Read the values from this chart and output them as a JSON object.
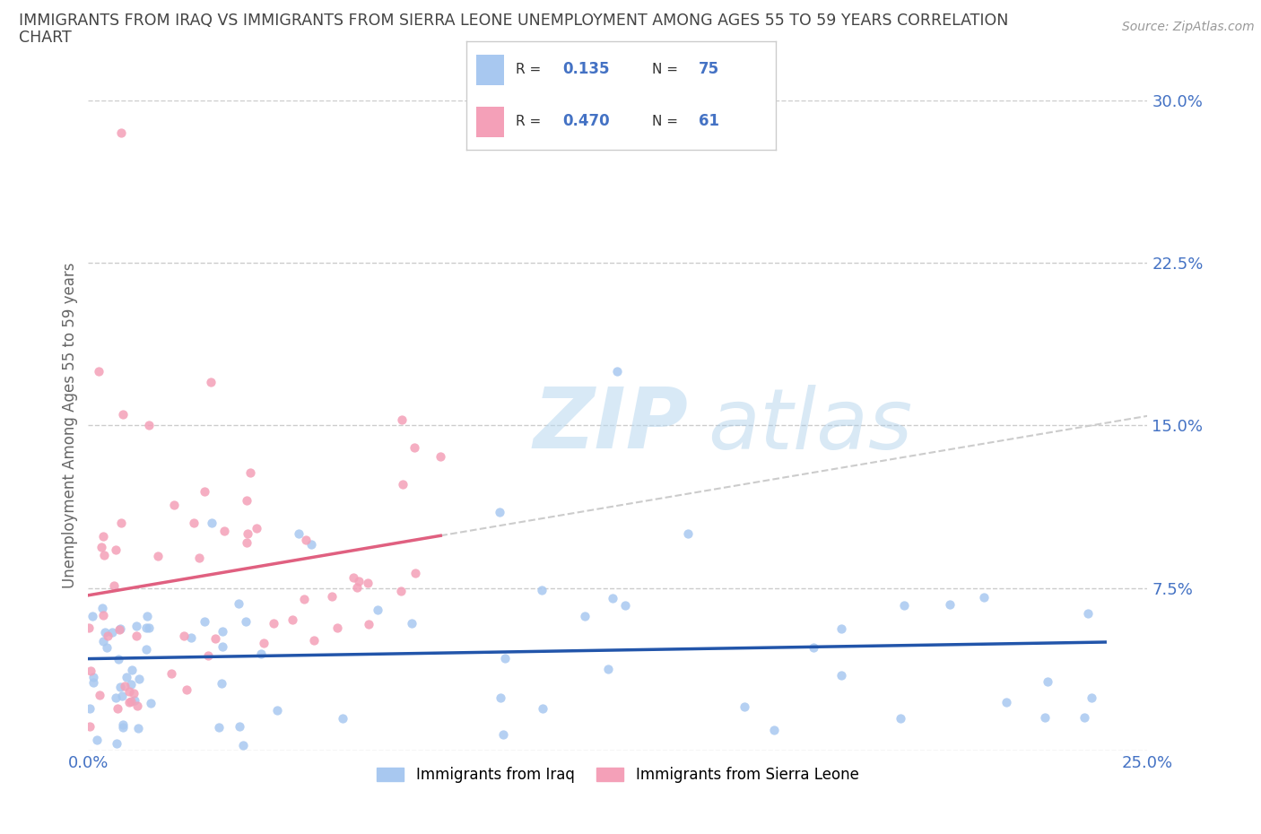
{
  "title_line1": "IMMIGRANTS FROM IRAQ VS IMMIGRANTS FROM SIERRA LEONE UNEMPLOYMENT AMONG AGES 55 TO 59 YEARS CORRELATION",
  "title_line2": "CHART",
  "source_text": "Source: ZipAtlas.com",
  "ylabel": "Unemployment Among Ages 55 to 59 years",
  "xlim": [
    0.0,
    0.25
  ],
  "ylim": [
    0.0,
    0.3
  ],
  "xticks": [
    0.0,
    0.05,
    0.1,
    0.15,
    0.2,
    0.25
  ],
  "yticks": [
    0.0,
    0.075,
    0.15,
    0.225,
    0.3
  ],
  "ytick_labels": [
    "",
    "7.5%",
    "15.0%",
    "22.5%",
    "30.0%"
  ],
  "xtick_labels": [
    "0.0%",
    "",
    "",
    "",
    "",
    "25.0%"
  ],
  "iraq_color": "#a8c8f0",
  "sierra_color": "#f4a0b8",
  "iraq_R": 0.135,
  "iraq_N": 75,
  "sierra_R": 0.47,
  "sierra_N": 61,
  "iraq_line_color": "#2255aa",
  "sierra_line_color": "#e06080",
  "sierra_extrap_color": "#cccccc",
  "watermark_ZIP": "ZIP",
  "watermark_atlas": "atlas",
  "legend_label_iraq": "Immigrants from Iraq",
  "legend_label_sierra": "Immigrants from Sierra Leone",
  "background_color": "#ffffff",
  "grid_color": "#cccccc",
  "tick_label_color": "#4472c4",
  "title_color": "#444444"
}
